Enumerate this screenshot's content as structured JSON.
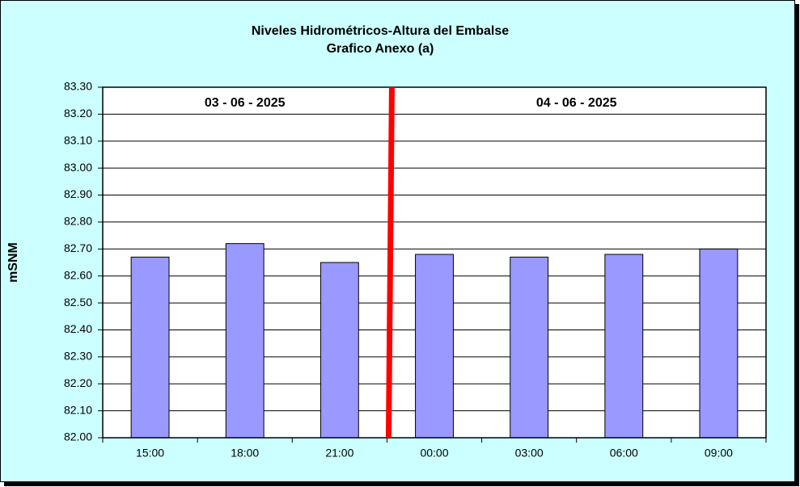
{
  "chart_data": {
    "type": "bar",
    "title": "Niveles Hidrométricos-Altura del Embalse",
    "subtitle": "Grafico Anexo (a)",
    "y_label": "mSNM",
    "categories": [
      "15:00",
      "18:00",
      "21:00",
      "00:00",
      "03:00",
      "06:00",
      "09:00"
    ],
    "values": [
      82.67,
      82.72,
      82.65,
      82.68,
      82.67,
      82.68,
      82.7
    ],
    "color": "#9999ff",
    "ylim": [
      82.0,
      83.3
    ],
    "yticks": [
      {
        "value": 82.0,
        "label": "82.00"
      },
      {
        "value": 82.1,
        "label": "82.10"
      },
      {
        "value": 82.2,
        "label": "82.20"
      },
      {
        "value": 82.3,
        "label": "82.30"
      },
      {
        "value": 82.4,
        "label": "82.40"
      },
      {
        "value": 82.5,
        "label": "82.50"
      },
      {
        "value": 82.6,
        "label": "82.60"
      },
      {
        "value": 82.7,
        "label": "82.70"
      },
      {
        "value": 82.8,
        "label": "82.80"
      },
      {
        "value": 82.9,
        "label": "82.90"
      },
      {
        "value": 83.0,
        "label": "83.00"
      },
      {
        "value": 83.1,
        "label": "83.10"
      },
      {
        "value": 83.2,
        "label": "83.20"
      },
      {
        "value": 83.3,
        "label": "83.30"
      }
    ],
    "grid": true,
    "annotations": [
      "03 - 06 - 2025",
      "04 - 06 - 2025"
    ]
  }
}
